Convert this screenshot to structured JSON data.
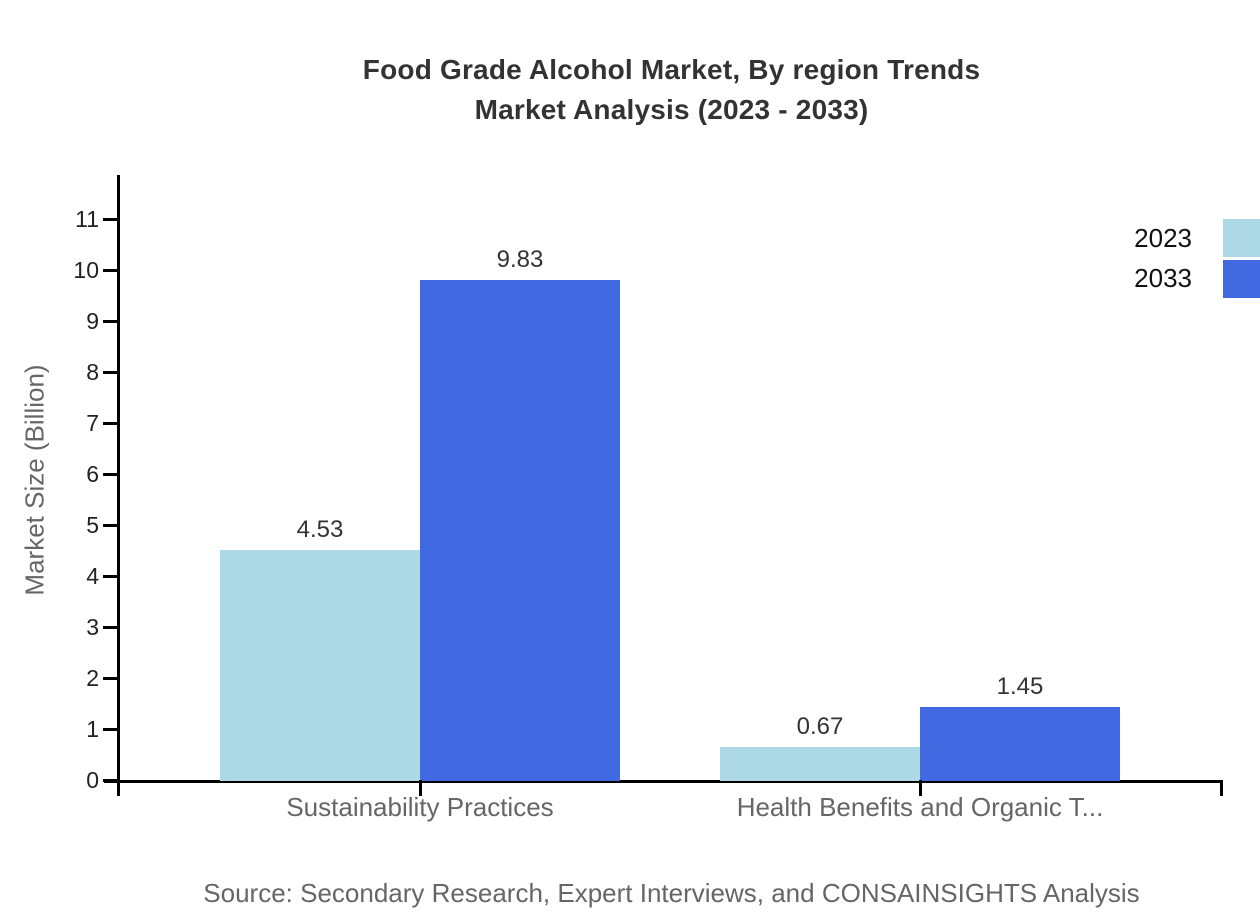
{
  "title": {
    "line1": "Food Grade Alcohol Market, By region Trends",
    "line2": "Market Analysis (2023 - 2033)"
  },
  "y_axis_label": "Market Size (Billion)",
  "source": "Source: Secondary Research, Expert Interviews, and CONSAINSIGHTS Analysis",
  "legend": {
    "items": [
      {
        "label": "2023",
        "color": "#ADD8E6"
      },
      {
        "label": "2033",
        "color": "#4169E1"
      }
    ]
  },
  "chart_data": {
    "type": "bar",
    "title": "Food Grade Alcohol Market, By region Trends Market Analysis (2023 - 2033)",
    "categories": [
      "Sustainability Practices",
      "Health Benefits and Organic T..."
    ],
    "series": [
      {
        "name": "2023",
        "color": "#ADD8E6",
        "values": [
          4.53,
          0.67
        ]
      },
      {
        "name": "2033",
        "color": "#4169E1",
        "values": [
          9.83,
          1.45
        ]
      }
    ],
    "value_labels": [
      [
        "4.53",
        "0.67"
      ],
      [
        "9.83",
        "1.45"
      ]
    ],
    "xlabel": "",
    "ylabel": "Market Size (Billion)",
    "ylim": [
      0,
      11
    ],
    "ytick_step": 1,
    "grid": false,
    "legend_position": "top-right"
  }
}
